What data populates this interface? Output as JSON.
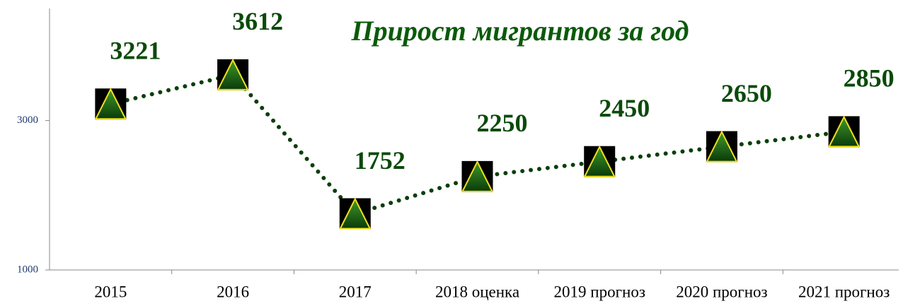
{
  "chart_data": {
    "type": "line",
    "title": "Прирост мигрантов за год",
    "categories": [
      "2015",
      "2016",
      "2017",
      "2018 оценка",
      "2019 прогноз",
      "2020 прогноз",
      "2021 прогноз"
    ],
    "series": [
      {
        "name": "Прирост мигрантов",
        "color": "#0a3f0a",
        "values": [
          3221,
          3612,
          1752,
          2250,
          2450,
          2650,
          2850
        ]
      }
    ],
    "ylim": [
      1000,
      4500
    ],
    "yticks": [
      1000,
      3000
    ]
  }
}
